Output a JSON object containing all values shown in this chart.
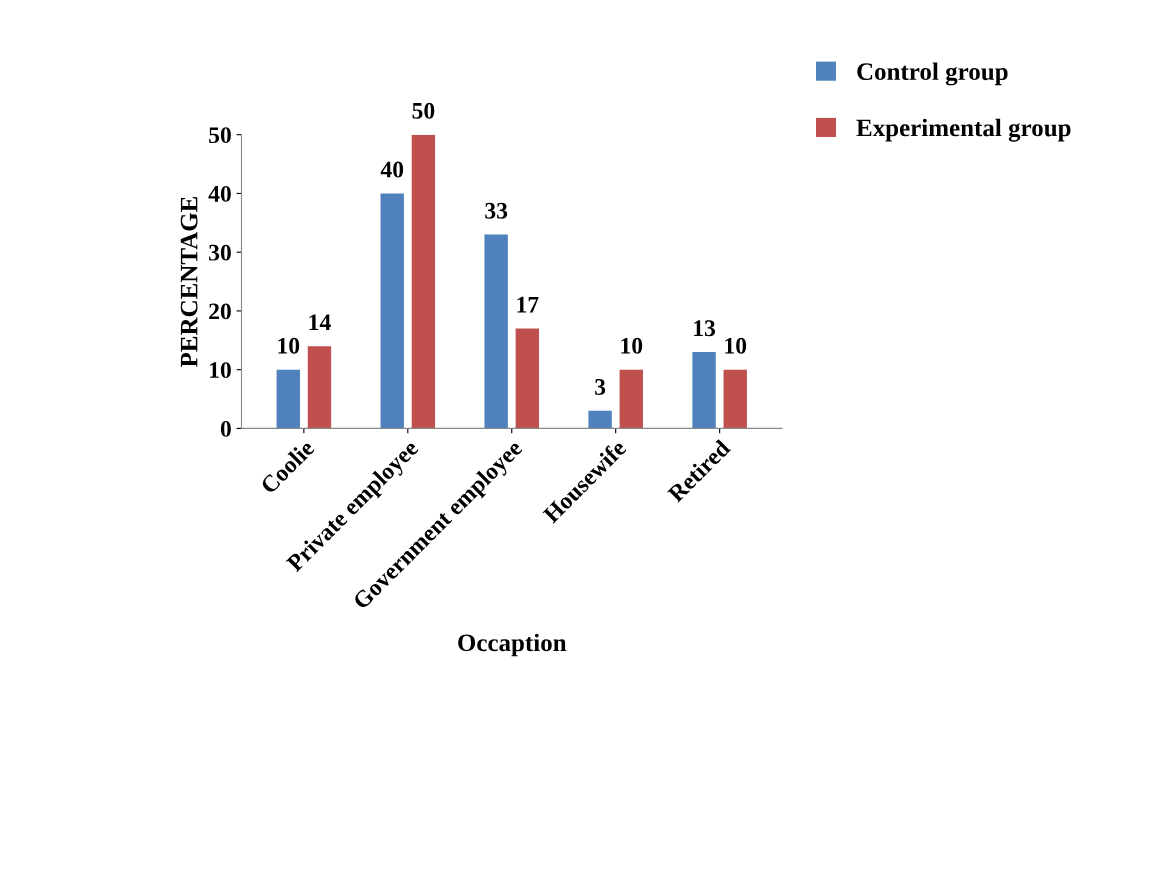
{
  "chart_data": {
    "type": "bar",
    "xlabel": "Occaption",
    "ylabel": "PERCENTAGE",
    "categories": [
      "Coolie",
      "Private employee",
      "Government employee",
      "Housewife",
      "Retired"
    ],
    "series": [
      {
        "name": "Control group",
        "color": "#4f81bd",
        "values": [
          10,
          40,
          33,
          3,
          13
        ]
      },
      {
        "name": "Experimental group",
        "color": "#c0504d",
        "values": [
          14,
          50,
          17,
          10,
          10
        ]
      }
    ],
    "ylim": [
      0,
      50
    ],
    "yticks": [
      0,
      10,
      20,
      30,
      40,
      50
    ],
    "grid": false,
    "legend": "top right",
    "data_labels": true
  }
}
